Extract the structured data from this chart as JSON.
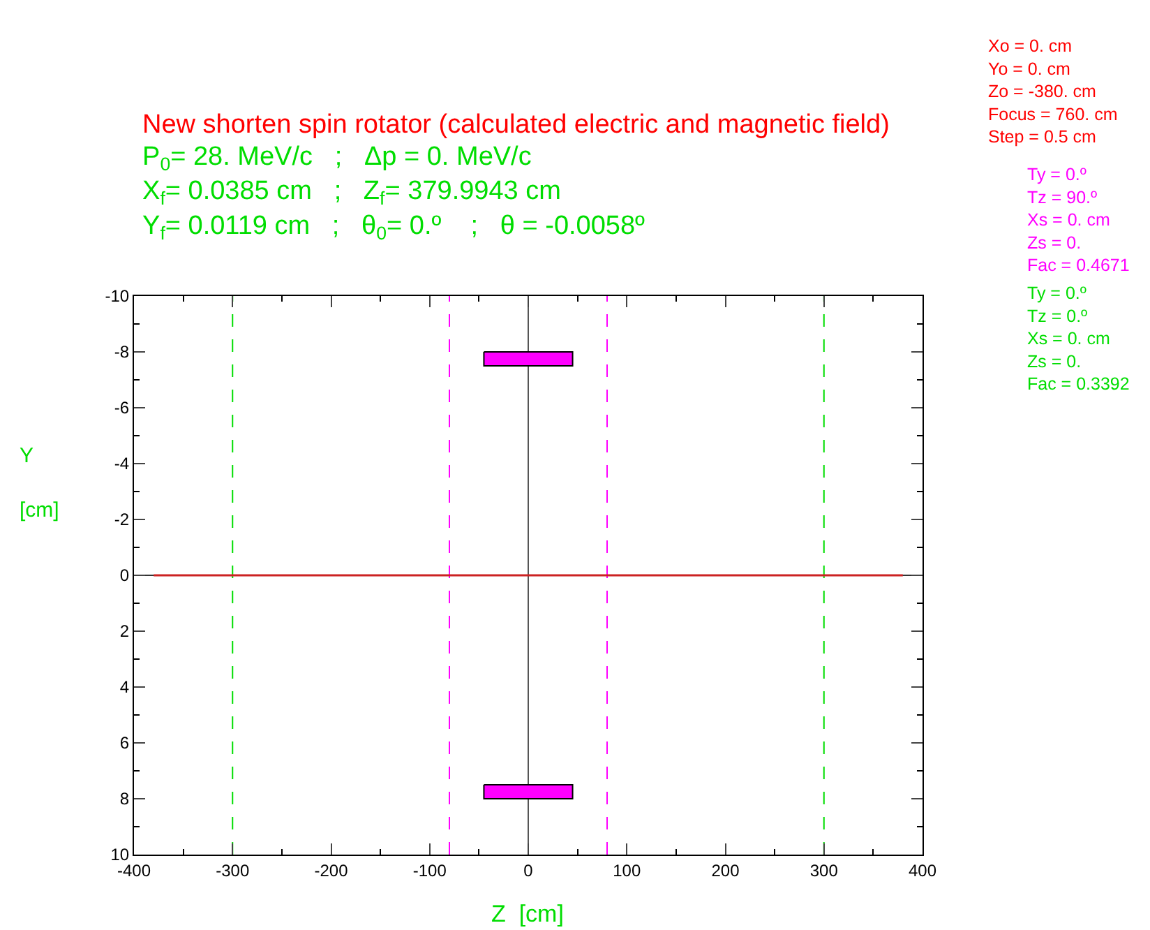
{
  "chart_data": {
    "type": "line",
    "title": "New shorten spin rotator (calculated electric and magnetic field)",
    "subtitle": "P$_{0}$= 28. MeV/c   ;   Δp = 0. MeV/c\nX$_{f}$= 0.0385 cm   ;   Z$_{f}$= 379.9943 cm\nY$_{f}$= 0.0119 cm   ;   θ$_{0}$= 0.º    ;   θ = -0.0058º",
    "xlabel": "Z  [cm]",
    "ylabel": "Y\n\n[cm]",
    "annotations": [
      "Xo = 0. cm\nYo = 0. cm\nZo = -380. cm\nFocus = 760. cm\nStep = 0.5 cm",
      "Ty = 0.º\nTz = 90.º\nXs = 0. cm\nZs = 0.\nFac = 0.4671",
      "Ty = 0.º\nTz = 0.º\nXs = 0. cm\nZs = 0.\nFac = 0.3392"
    ],
    "series": [
      {
        "color": "#cc2222",
        "x": [
          -380,
          380
        ],
        "values": [
          0,
          0
        ]
      },
      {
        "type": "area",
        "color": "#ff00ff",
        "x": [
          -45,
          45,
          45,
          -45,
          -45
        ],
        "values": [
          -8,
          -8,
          -7.5,
          -7.5,
          -8
        ]
      },
      {
        "type": "area",
        "color": "#ff00ff",
        "x": [
          -45,
          45,
          45,
          -45,
          -45
        ],
        "values": [
          7.5,
          7.5,
          8,
          8,
          7.5
        ]
      }
    ],
    "xlim": [
      -400,
      400
    ],
    "xticks": [
      -400,
      -300,
      -200,
      -100,
      0,
      100,
      200,
      300,
      400
    ],
    "ylim": [
      10,
      -10
    ],
    "yticks": [
      -10,
      -8,
      -6,
      -4,
      -2,
      0,
      2,
      4,
      6,
      8,
      10
    ],
    "ref_lines": [
      {
        "axis": "x",
        "value": -300,
        "color": "#00dd00",
        "line_style": "dashed"
      },
      {
        "axis": "x",
        "value": 300,
        "color": "#00dd00",
        "line_style": "dashed"
      },
      {
        "axis": "x",
        "value": -80,
        "color": "#ff00ff",
        "line_style": "dashed"
      },
      {
        "axis": "x",
        "value": 80,
        "color": "#ff00ff",
        "line_style": "dashed"
      },
      {
        "axis": "x",
        "value": 0,
        "color": "#555555",
        "line_style": "solid"
      },
      {
        "axis": "y",
        "value": 0,
        "color": "#333333",
        "line_style": "solid"
      }
    ],
    "grid": false
  }
}
